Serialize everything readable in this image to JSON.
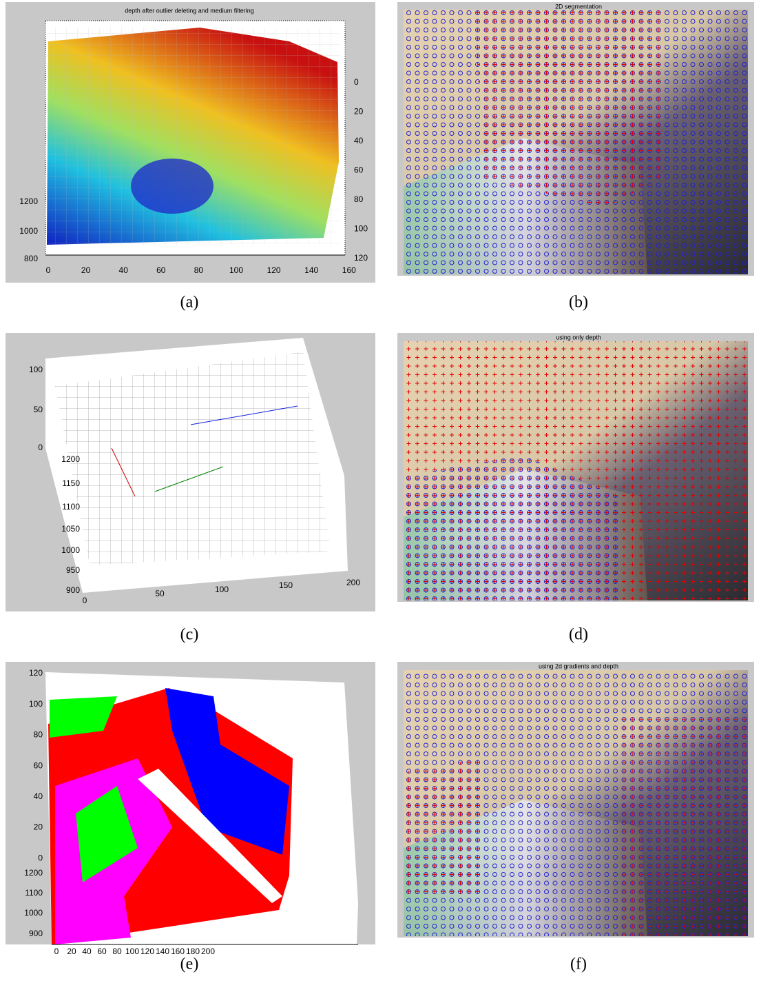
{
  "panels": [
    {
      "caption": "(a)",
      "title": "depth after outlier deleting and medium filtering",
      "x_ticks": [
        "0",
        "20",
        "40",
        "60",
        "80",
        "100",
        "120",
        "140",
        "160"
      ],
      "z_ticks": [
        "800",
        "1000",
        "1200"
      ],
      "y_ticks": [
        "0",
        "20",
        "40",
        "60",
        "80",
        "100",
        "120"
      ]
    },
    {
      "caption": "(b)",
      "title": "2D segmentation"
    },
    {
      "caption": "(c)",
      "z_ticks": [
        "100",
        "50",
        "0"
      ],
      "y_ticks": [
        "1200",
        "1150",
        "1100",
        "1050",
        "1000",
        "950",
        "900"
      ],
      "x_ticks": [
        "0",
        "50",
        "100",
        "150",
        "200"
      ]
    },
    {
      "caption": "(d)",
      "title": "using only depth"
    },
    {
      "caption": "(e)",
      "z_ticks": [
        "120",
        "100",
        "80",
        "60",
        "40",
        "20",
        "0"
      ],
      "y_ticks": [
        "1200",
        "1100",
        "1000",
        "900"
      ],
      "x_ticks": [
        "0",
        "20",
        "40",
        "60",
        "80",
        "100",
        "120",
        "140",
        "160",
        "180",
        "200"
      ]
    },
    {
      "caption": "(f)",
      "title": "using 2d gradients and depth"
    }
  ]
}
